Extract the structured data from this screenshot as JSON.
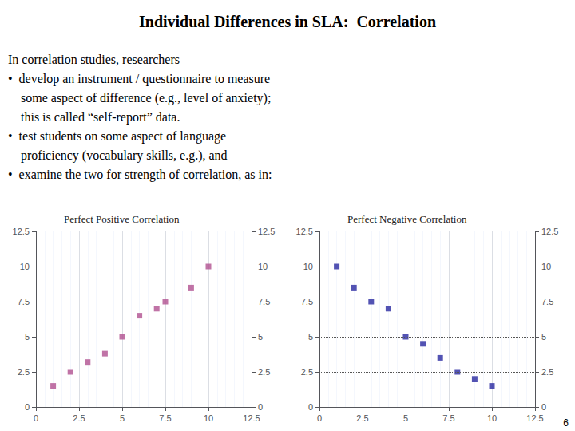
{
  "title": "Individual Differences in SLA:  Correlation",
  "annotations": [
    "In correlation studies, researchers\n•  develop an instrument / questionnaire to measure\n    some aspect of difference (e.g., level of anxiety);\n    this is called “self-report” data.\n•  test students on some aspect of language\n    proficiency (vocabulary skills, e.g.), and\n•  examine the two for strength of correlation, as in:",
    "6"
  ],
  "chart_data": [
    {
      "type": "scatter",
      "title": "Perfect Positive Correlation",
      "x": [
        1,
        2,
        3,
        4,
        5,
        6,
        7,
        7.5,
        9,
        10
      ],
      "values": [
        1.5,
        2.5,
        3.2,
        3.8,
        5.0,
        6.5,
        7.0,
        7.5,
        8.5,
        10.0
      ],
      "color": "#b05090",
      "marker": "square",
      "xlim": [
        0,
        12.5
      ],
      "ylim": [
        0,
        12.5
      ],
      "xticks": [
        0,
        2.5,
        5,
        7.5,
        10,
        12.5
      ],
      "yticks": [
        0,
        2.5,
        5,
        7.5,
        10,
        12.5
      ],
      "y2lim": [
        0,
        12.5
      ],
      "y2ticks": [
        0,
        2.5,
        5,
        7.5,
        10,
        12.5
      ],
      "hlines": [
        3.5,
        7.5
      ],
      "grid": true
    },
    {
      "type": "scatter",
      "title": "Perfect Negative Correlation",
      "x": [
        1,
        2,
        3,
        4,
        5,
        6,
        7,
        8,
        9,
        10
      ],
      "values": [
        10.0,
        8.5,
        7.5,
        7.0,
        5.0,
        4.5,
        3.5,
        2.5,
        2.0,
        1.5
      ],
      "color": "#2828a0",
      "marker": "square",
      "xlim": [
        0,
        12.5
      ],
      "ylim": [
        0,
        12.5
      ],
      "xticks": [
        0,
        2.5,
        5,
        7.5,
        10,
        12.5
      ],
      "yticks": [
        0,
        2.5,
        5,
        7.5,
        10,
        12.5
      ],
      "y2lim": [
        0,
        12.5
      ],
      "y2ticks": [
        0,
        2.5,
        5,
        7.5,
        10,
        12.5
      ],
      "hlines": [
        2.5,
        5.0,
        7.5
      ],
      "grid": true
    }
  ]
}
